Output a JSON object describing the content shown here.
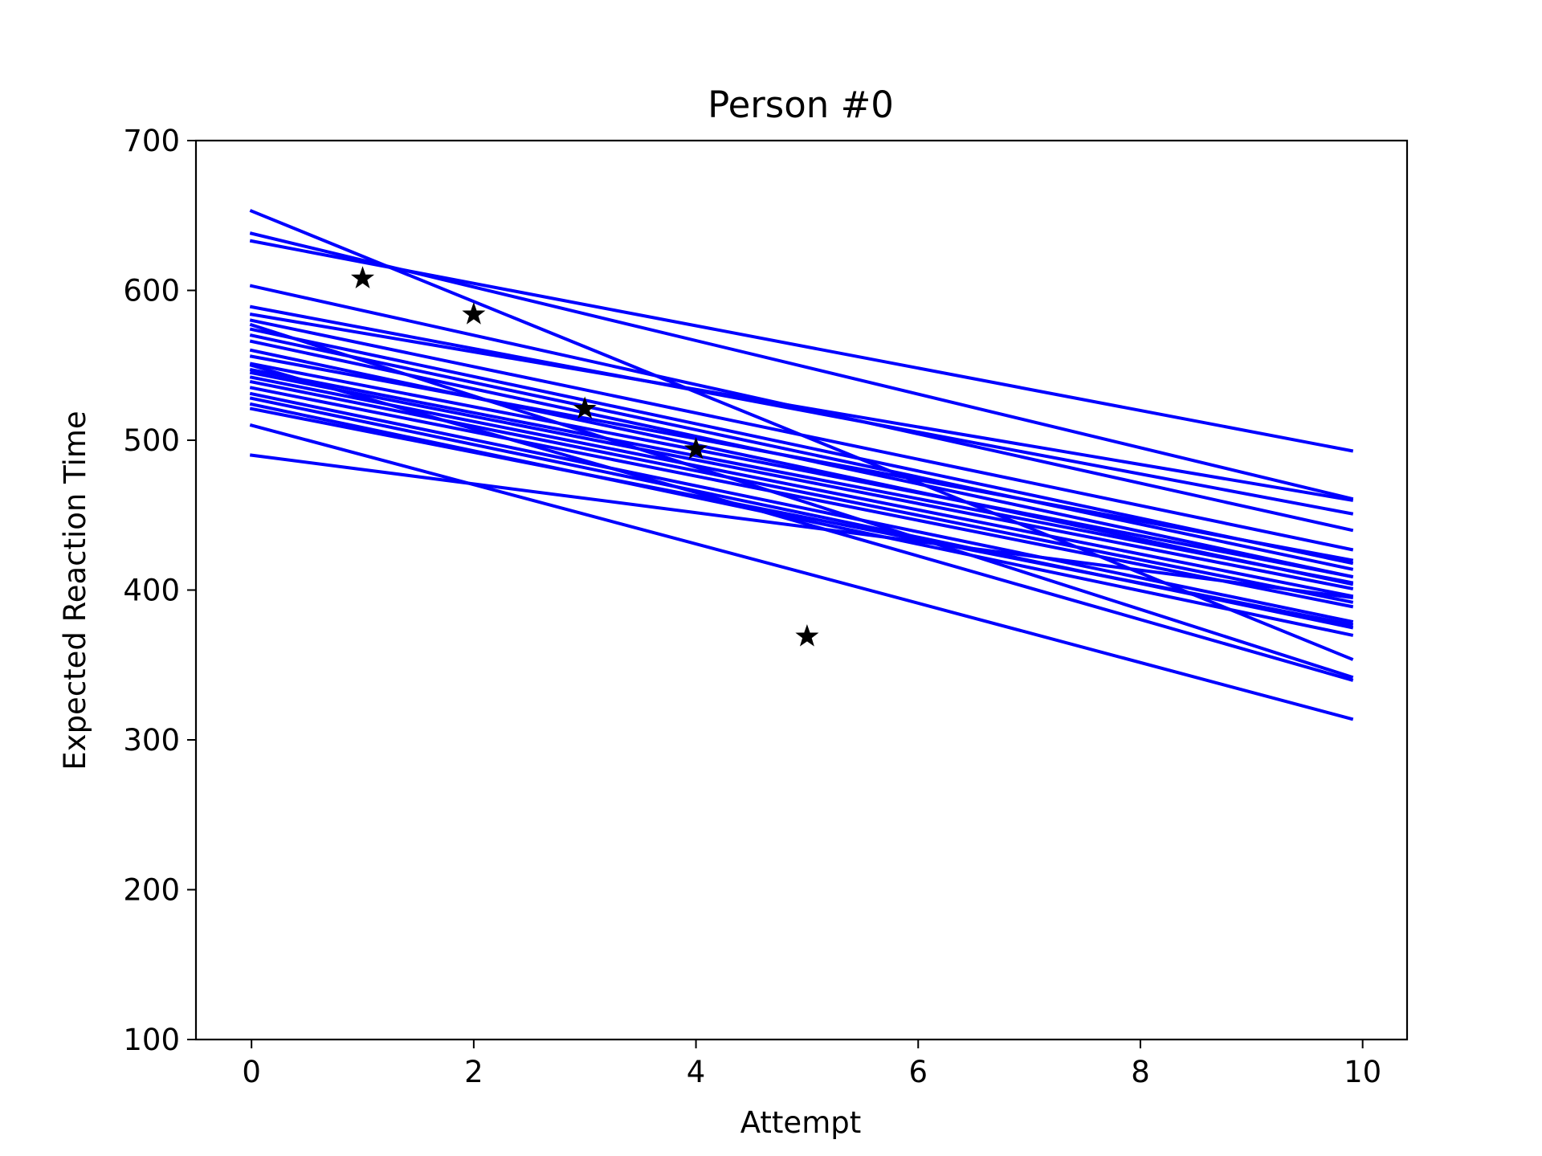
{
  "chart_data": {
    "type": "line",
    "title": "Person #0",
    "xlabel": "Attempt",
    "ylabel": "Expected Reaction Time",
    "xlim": [
      -0.5,
      10.4
    ],
    "ylim": [
      100,
      700
    ],
    "xticks": [
      0,
      2,
      4,
      6,
      8,
      10
    ],
    "yticks": [
      100,
      200,
      300,
      400,
      500,
      600,
      700
    ],
    "grid": false,
    "line_color": "#0000ff",
    "marker_color": "#000000",
    "lines": [
      {
        "x": [
          0,
          9.9
        ],
        "y": [
          653,
          354
        ]
      },
      {
        "x": [
          0,
          9.9
        ],
        "y": [
          638,
          461
        ]
      },
      {
        "x": [
          0,
          9.9
        ],
        "y": [
          633,
          493
        ]
      },
      {
        "x": [
          0,
          9.9
        ],
        "y": [
          603,
          440
        ]
      },
      {
        "x": [
          0,
          9.9
        ],
        "y": [
          589,
          451
        ]
      },
      {
        "x": [
          0,
          9.9
        ],
        "y": [
          584,
          460
        ]
      },
      {
        "x": [
          0,
          9.9
        ],
        "y": [
          580,
          427
        ]
      },
      {
        "x": [
          0,
          9.9
        ],
        "y": [
          574,
          418
        ]
      },
      {
        "x": [
          0,
          9.9
        ],
        "y": [
          570,
          414
        ]
      },
      {
        "x": [
          0,
          9.9
        ],
        "y": [
          556,
          420
        ]
      },
      {
        "x": [
          0,
          9.9
        ],
        "y": [
          551,
          409
        ]
      },
      {
        "x": [
          0,
          9.9
        ],
        "y": [
          547,
          405
        ]
      },
      {
        "x": [
          0,
          9.9
        ],
        "y": [
          545,
          401
        ]
      },
      {
        "x": [
          0,
          9.9
        ],
        "y": [
          542,
          396
        ]
      },
      {
        "x": [
          0,
          9.9
        ],
        "y": [
          539,
          392
        ]
      },
      {
        "x": [
          0,
          9.9
        ],
        "y": [
          535,
          389
        ]
      },
      {
        "x": [
          0,
          9.9
        ],
        "y": [
          531,
          379
        ]
      },
      {
        "x": [
          0,
          9.9
        ],
        "y": [
          528,
          375
        ]
      },
      {
        "x": [
          0,
          9.9
        ],
        "y": [
          524,
          370
        ]
      },
      {
        "x": [
          0,
          9.9
        ],
        "y": [
          521,
          377
        ]
      },
      {
        "x": [
          0,
          9.9
        ],
        "y": [
          577,
          342
        ]
      },
      {
        "x": [
          0,
          9.9
        ],
        "y": [
          550,
          340
        ]
      },
      {
        "x": [
          0,
          9.9
        ],
        "y": [
          510,
          314
        ]
      },
      {
        "x": [
          0,
          9.9
        ],
        "y": [
          490,
          395
        ]
      },
      {
        "x": [
          0,
          9.9
        ],
        "y": [
          560,
          404
        ]
      },
      {
        "x": [
          0,
          9.9
        ],
        "y": [
          566,
          409
        ]
      }
    ],
    "points": {
      "x": [
        1,
        2,
        3,
        4,
        5
      ],
      "y": [
        608,
        584,
        521,
        494,
        369
      ]
    }
  }
}
